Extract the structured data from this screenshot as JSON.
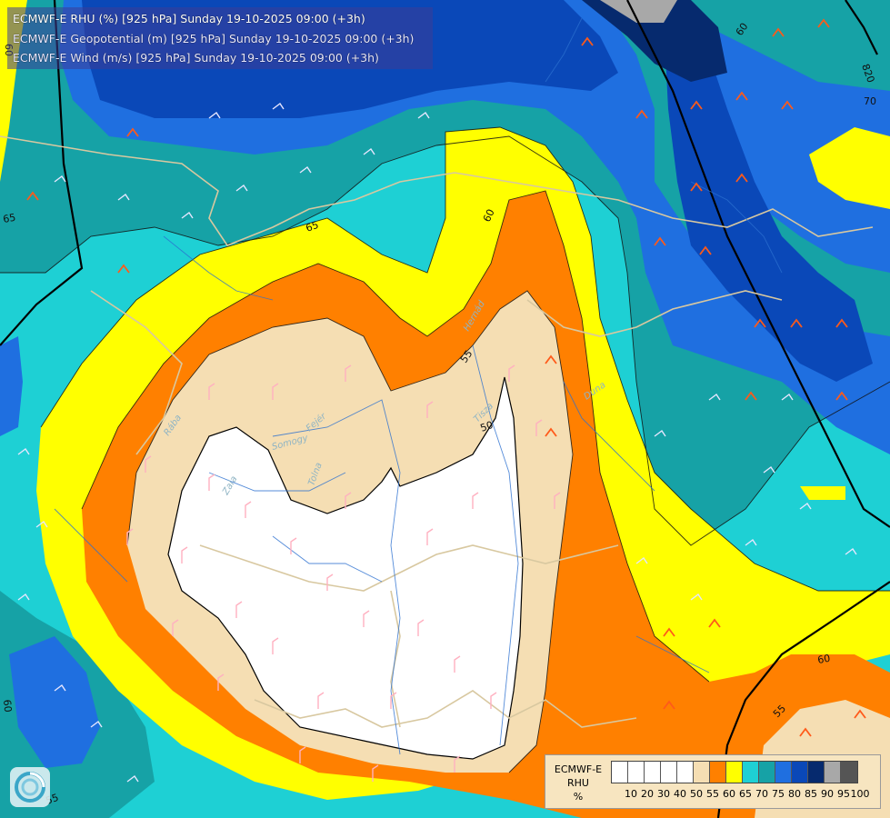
{
  "title": {
    "line1": "ECMWF-E RHU (%) [925 hPa] Sunday 19-10-2025 09:00 (+3h)",
    "line2": "ECMWF-E Geopotential (m) [925 hPa] Sunday 19-10-2025 09:00 (+3h)",
    "line3": "ECMWF-E Wind (m/s) [925 hPa] Sunday 19-10-2025 09:00 (+3h)"
  },
  "legend": {
    "model": "ECMWF-E",
    "variable": "RHU",
    "unit": "%",
    "levels": [
      "10",
      "20",
      "30",
      "40",
      "50",
      "55",
      "60",
      "65",
      "70",
      "75",
      "80",
      "85",
      "90",
      "95",
      "100"
    ],
    "colors": [
      "#ffffff",
      "#ffffff",
      "#ffffff",
      "#ffffff",
      "#ffffff",
      "#f5deb3",
      "#ff8000",
      "#ffff00",
      "#1ed0d4",
      "#16a2a6",
      "#1f6fe0",
      "#0a48b8",
      "#062a6e",
      "#a8a8a8",
      "#555555"
    ]
  },
  "contour_labels": [
    "60",
    "65",
    "55",
    "50",
    "55",
    "60",
    "65",
    "60",
    "55",
    "70",
    "820",
    "60",
    "60",
    "65",
    "70"
  ],
  "place_labels": [
    "Duna",
    "Tisza",
    "Zala",
    "Rába",
    "Somogy",
    "Fejér",
    "Tolna",
    "Hernád"
  ],
  "colors": {
    "rhu_50": "#ffffff",
    "rhu_55": "#f5deb3",
    "rhu_60": "#ff8000",
    "rhu_65": "#ffff00",
    "rhu_70": "#1ed0d4",
    "rhu_75": "#16a2a6",
    "rhu_80": "#1f6fe0",
    "rhu_85": "#0a48b8",
    "rhu_90": "#062a6e",
    "rhu_95": "#a8a8a8",
    "border": "#d8c8a0",
    "river": "#2a6fd0",
    "wind_barb_low": "#ff7a7a",
    "wind_barb_high": "#ff5a1a",
    "contour": "#000000"
  },
  "logo_icon": "ecmwf-logo-icon"
}
